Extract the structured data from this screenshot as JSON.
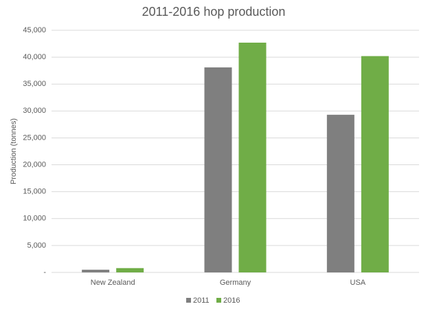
{
  "chart_data": {
    "type": "bar",
    "title": "2011-2016 hop production",
    "y_label": "Production (tonnes)",
    "categories": [
      "New Zealand",
      "Germany",
      "USA"
    ],
    "series": [
      {
        "name": "2011",
        "color": "#7f7f7f",
        "values": [
          500,
          38100,
          29300
        ]
      },
      {
        "name": "2016",
        "color": "#70ad47",
        "values": [
          800,
          42700,
          40200
        ]
      }
    ],
    "ylim": [
      0,
      45000
    ],
    "yticks": [
      {
        "value": 0,
        "label": "-"
      },
      {
        "value": 5000,
        "label": "5,000"
      },
      {
        "value": 10000,
        "label": "10,000"
      },
      {
        "value": 15000,
        "label": "15,000"
      },
      {
        "value": 20000,
        "label": "20,000"
      },
      {
        "value": 25000,
        "label": "25,000"
      },
      {
        "value": 30000,
        "label": "30,000"
      },
      {
        "value": 35000,
        "label": "35,000"
      },
      {
        "value": 40000,
        "label": "40,000"
      },
      {
        "value": 45000,
        "label": "45,000"
      }
    ],
    "grid": true,
    "legend": "bottom"
  }
}
